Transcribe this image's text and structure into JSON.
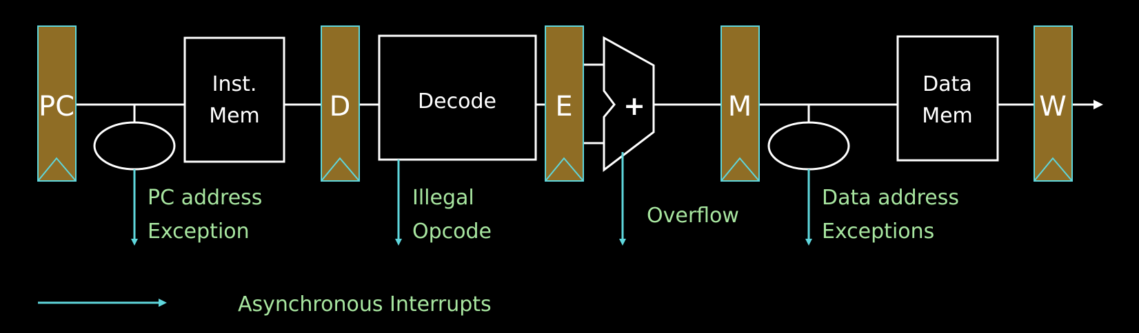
{
  "colors": {
    "background": "#000000",
    "register_fill": "#8f6d25",
    "register_stroke": "#5fd7dd",
    "wire": "#ffffff",
    "block_stroke": "#ffffff",
    "block_text": "#ffffff",
    "exception_arrow": "#5fd7dd",
    "exception_text": "#a8e6a0"
  },
  "registers": [
    {
      "id": "pc",
      "label": "PC"
    },
    {
      "id": "d",
      "label": "D"
    },
    {
      "id": "e",
      "label": "E"
    },
    {
      "id": "m",
      "label": "M"
    },
    {
      "id": "w",
      "label": "W"
    }
  ],
  "blocks": {
    "inst_mem": {
      "line1": "Inst.",
      "line2": "Mem"
    },
    "decode": {
      "line1": "Decode"
    },
    "alu": {
      "symbol": "+"
    },
    "data_mem": {
      "line1": "Data",
      "line2": "Mem"
    }
  },
  "exceptions": {
    "pc_address": {
      "line1": "PC address",
      "line2": "Exception"
    },
    "illegal_opcode": {
      "line1": "Illegal",
      "line2": "Opcode"
    },
    "overflow": {
      "line1": "Overflow"
    },
    "data_address": {
      "line1": "Data address",
      "line2": "Exceptions"
    }
  },
  "legend": {
    "label": "Asynchronous Interrupts"
  }
}
